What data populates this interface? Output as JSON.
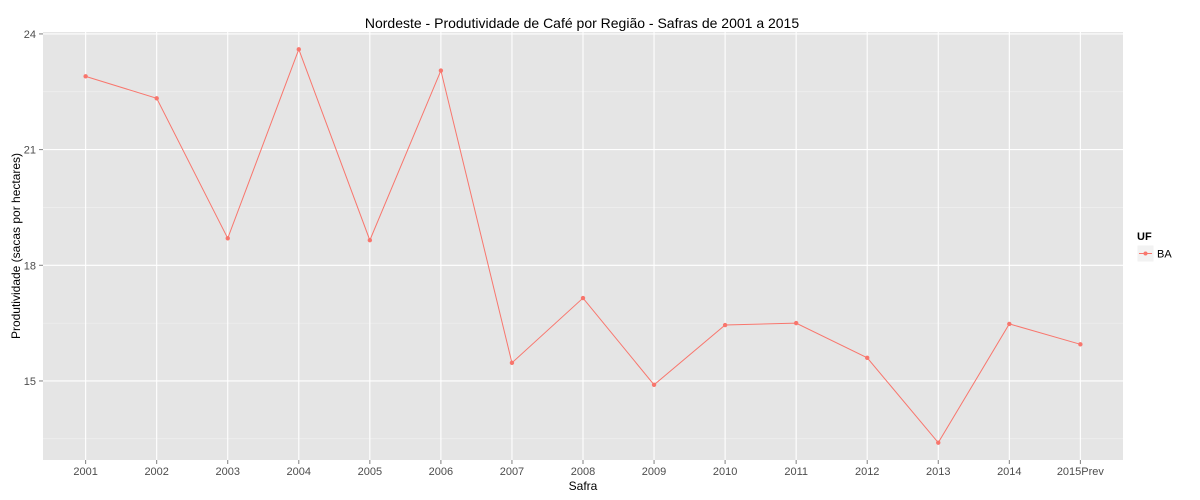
{
  "chart_data": {
    "type": "line",
    "title": "Nordeste  - Produtividade de Café por Região - Safras de 2001 a 2015",
    "xlabel": "Safra",
    "ylabel": "Produtividade (sacas por hectares)",
    "categories": [
      "2001",
      "2002",
      "2003",
      "2004",
      "2005",
      "2006",
      "2007",
      "2008",
      "2009",
      "2010",
      "2011",
      "2012",
      "2013",
      "2014",
      "2015Prev"
    ],
    "ylim": [
      12.95,
      24.05
    ],
    "yticks": [
      15,
      18,
      21,
      24
    ],
    "ytick_labels": [
      "15",
      "18",
      "21",
      "24"
    ],
    "grid": true,
    "legend": {
      "title": "UF",
      "position": "right"
    },
    "series": [
      {
        "name": "BA",
        "color": "#F8766D",
        "values": [
          22.9,
          22.33,
          18.7,
          23.6,
          18.65,
          23.05,
          15.47,
          17.15,
          14.9,
          16.45,
          16.5,
          15.6,
          13.4,
          16.48,
          15.95
        ]
      }
    ]
  }
}
